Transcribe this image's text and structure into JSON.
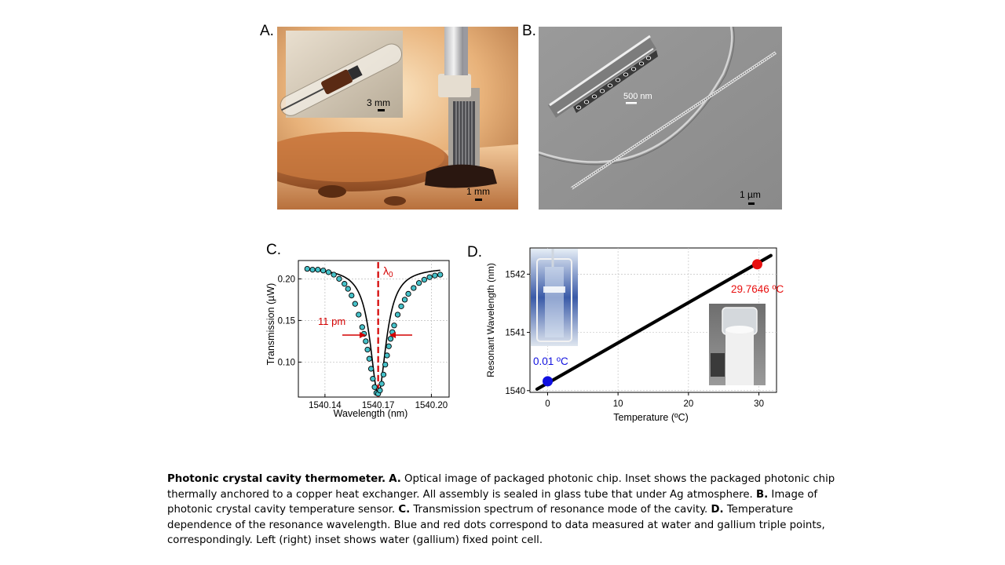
{
  "panels": {
    "a": {
      "label": "A.",
      "inset_scale": "3 mm",
      "main_scale": "1 mm"
    },
    "b": {
      "label": "B.",
      "inset_scale": "500 nm",
      "main_scale": "1 µm"
    },
    "c": {
      "label": "C.",
      "annotation_lambda": "λ",
      "annotation_lambda_sub": "0",
      "annotation_width": "11 pm"
    },
    "d": {
      "label": "D.",
      "blue_point_label": "0.01 ºC",
      "red_point_label": "29.7646 ºC"
    }
  },
  "colors": {
    "marker_fill": "#46c1c9",
    "lambda_line": "#d40000",
    "blue_point": "#1010e0",
    "red_point": "#e81010",
    "fit_line": "#000000"
  },
  "chart_data": [
    {
      "type": "scatter",
      "xlabel": "Wavelength (nm)",
      "ylabel": "Transmission (µW)",
      "xlim": [
        1540.125,
        1540.21
      ],
      "ylim": [
        0.058,
        0.222
      ],
      "xticks": [
        1540.14,
        1540.17,
        1540.2
      ],
      "xtick_labels": [
        "1540.14",
        "1540.17",
        "1540.20"
      ],
      "yticks": [
        0.1,
        0.15,
        0.2
      ],
      "ytick_labels": [
        "0.10",
        "0.15",
        "0.20"
      ],
      "grid": true,
      "lorentzian_fit": {
        "baseline": 0.214,
        "depth": 0.152,
        "center": 1540.17,
        "fwhm": 0.011
      },
      "series": [
        {
          "marker": "circle",
          "x": [
            1540.13,
            1540.133,
            1540.136,
            1540.139,
            1540.142,
            1540.145,
            1540.148,
            1540.151,
            1540.153,
            1540.155,
            1540.157,
            1540.159,
            1540.161,
            1540.162,
            1540.163,
            1540.164,
            1540.165,
            1540.166,
            1540.167,
            1540.168,
            1540.169,
            1540.17,
            1540.171,
            1540.172,
            1540.173,
            1540.174,
            1540.175,
            1540.176,
            1540.177,
            1540.178,
            1540.179,
            1540.181,
            1540.183,
            1540.185,
            1540.187,
            1540.19,
            1540.193,
            1540.196,
            1540.199,
            1540.202,
            1540.205
          ],
          "y": [
            0.212,
            0.211,
            0.211,
            0.21,
            0.208,
            0.205,
            0.2,
            0.194,
            0.188,
            0.18,
            0.17,
            0.157,
            0.142,
            0.134,
            0.125,
            0.115,
            0.104,
            0.092,
            0.08,
            0.07,
            0.063,
            0.062,
            0.066,
            0.074,
            0.085,
            0.097,
            0.108,
            0.119,
            0.128,
            0.136,
            0.144,
            0.157,
            0.167,
            0.175,
            0.182,
            0.189,
            0.195,
            0.199,
            0.202,
            0.204,
            0.205
          ]
        }
      ]
    },
    {
      "type": "line",
      "xlabel": "Temperature (ºC)",
      "ylabel": "Resonant Wavelength (nm)",
      "xlim": [
        -2.5,
        32.5
      ],
      "ylim": [
        1539.97,
        1542.45
      ],
      "xticks": [
        0,
        10,
        20,
        30
      ],
      "xtick_labels": [
        "0",
        "10",
        "20",
        "30"
      ],
      "yticks": [
        1540,
        1541,
        1542
      ],
      "ytick_labels": [
        "1540",
        "1541",
        "1542"
      ],
      "grid": true,
      "series": [
        {
          "x": [
            -1.5,
            31.7
          ],
          "y": [
            1540.025,
            1542.32
          ]
        }
      ],
      "points": [
        {
          "x": 0.01,
          "y": 1540.16,
          "color": "#1010e0"
        },
        {
          "x": 29.7646,
          "y": 1542.17,
          "color": "#e81010"
        }
      ]
    }
  ],
  "caption": {
    "title": "Photonic crystal cavity thermometer.",
    "a_tag": "A.",
    "a_text": " Optical image of packaged photonic chip. Inset shows the packaged photonic chip thermally anchored to a copper heat exchanger. All assembly is sealed in glass tube that under Ag atmosphere. ",
    "b_tag": "B.",
    "b_text": " Image of photonic crystal cavity temperature  sensor. ",
    "c_tag": "C.",
    "c_text": " Transmission spectrum of resonance mode of the cavity. ",
    "d_tag": "D.",
    "d_text": " Temperature dependence of the resonance wavelength. Blue and red dots correspond  to data measured at water and gallium triple points, correspondingly.  Left (right) inset shows water  (gallium) fixed point cell."
  }
}
